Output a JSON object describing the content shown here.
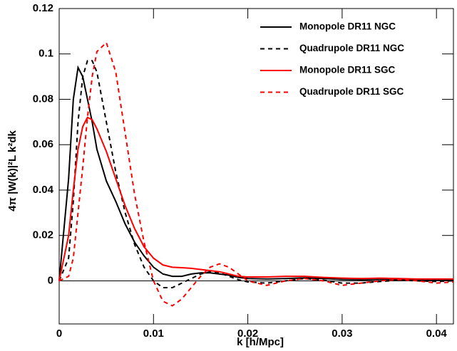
{
  "chart_data": {
    "type": "line",
    "xlabel": "k [h/Mpc]",
    "ylabel": "4π |W(k)|²L k²dk",
    "x": [
      0,
      0.001,
      0.0015,
      0.002,
      0.0025,
      0.003,
      0.0035,
      0.004,
      0.005,
      0.006,
      0.007,
      0.008,
      0.009,
      0.01,
      0.011,
      0.012,
      0.013,
      0.014,
      0.015,
      0.016,
      0.017,
      0.018,
      0.019,
      0.02,
      0.022,
      0.024,
      0.026,
      0.028,
      0.03,
      0.032,
      0.034,
      0.036,
      0.038,
      0.04,
      0.0418
    ],
    "series": [
      {
        "name": "Monopole DR11 NGC",
        "color": "#000000",
        "dash": false,
        "values": [
          0,
          0.045,
          0.08,
          0.094,
          0.09,
          0.08,
          0.07,
          0.058,
          0.044,
          0.035,
          0.025,
          0.017,
          0.011,
          0.006,
          0.003,
          0.002,
          0.002,
          0.003,
          0.0035,
          0.0035,
          0.003,
          0.0025,
          0.0015,
          0.001,
          0.0008,
          0.001,
          0.0013,
          0.001,
          0.0006,
          0.0005,
          0.0006,
          0.0005,
          0.0004,
          0.0004,
          0.0004
        ]
      },
      {
        "name": "Quadrupole DR11 NGC",
        "color": "#000000",
        "dash": true,
        "values": [
          0,
          0.01,
          0.035,
          0.07,
          0.09,
          0.097,
          0.097,
          0.092,
          0.07,
          0.048,
          0.03,
          0.016,
          0.006,
          0,
          -0.003,
          -0.003,
          -0.001,
          0.001,
          0.003,
          0.004,
          0.0035,
          0.002,
          0.0005,
          -0.0005,
          -0.001,
          0,
          0.001,
          0.0003,
          -0.001,
          -0.001,
          -0.0003,
          0.0003,
          0,
          -0.0003,
          0
        ]
      },
      {
        "name": "Monopole DR11 SGC",
        "color": "#ff0000",
        "dash": false,
        "values": [
          0,
          0.02,
          0.04,
          0.058,
          0.068,
          0.072,
          0.071,
          0.067,
          0.057,
          0.045,
          0.033,
          0.023,
          0.015,
          0.01,
          0.007,
          0.006,
          0.0058,
          0.0055,
          0.005,
          0.0045,
          0.004,
          0.003,
          0.002,
          0.0017,
          0.0017,
          0.002,
          0.002,
          0.0015,
          0.0012,
          0.001,
          0.0012,
          0.001,
          0.0008,
          0.0008,
          0.0008
        ]
      },
      {
        "name": "Quadrupole DR11 SGC",
        "color": "#ff0000",
        "dash": true,
        "values": [
          0,
          0.002,
          0.01,
          0.03,
          0.05,
          0.072,
          0.09,
          0.101,
          0.105,
          0.092,
          0.065,
          0.038,
          0.017,
          0,
          -0.009,
          -0.011,
          -0.008,
          -0.003,
          0.002,
          0.006,
          0.0075,
          0.006,
          0.003,
          0,
          -0.002,
          0,
          0.001,
          0,
          -0.002,
          -0.001,
          0,
          0.0005,
          0,
          -0.001,
          -0.0005
        ]
      }
    ],
    "xlim": [
      0,
      0.0418
    ],
    "xticks": [
      0,
      0.01,
      0.02,
      0.03,
      0.04
    ],
    "ylim": [
      -0.019,
      0.12
    ],
    "yticks": [
      0,
      0.02,
      0.04,
      0.06,
      0.08,
      0.1,
      0.12
    ],
    "reference_line": 0,
    "legend": "top-right"
  }
}
